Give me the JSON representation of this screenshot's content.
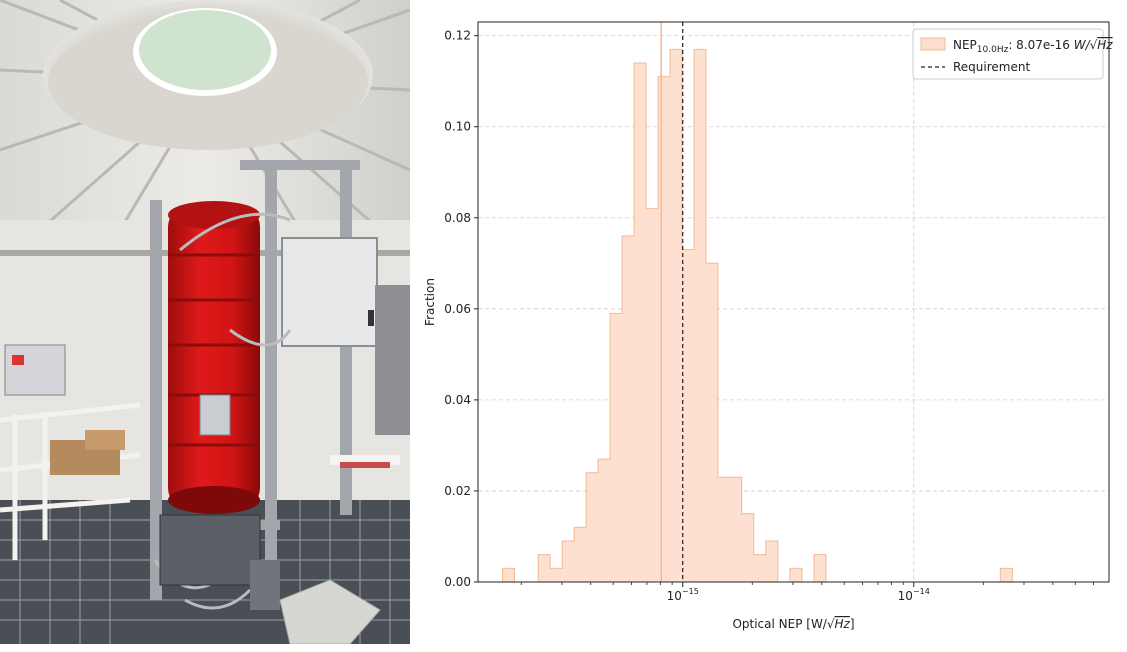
{
  "photo": {
    "description_icon": "telescope-cryostat-photo"
  },
  "chart_data": {
    "type": "histogram",
    "xscale": "log",
    "xlabel_prefix": "Optical NEP [W/",
    "xlabel_sqrt": "Hz",
    "xlabel_suffix": "]",
    "ylabel": "Fraction",
    "xlim": [
      1.3e-16,
      7e-14
    ],
    "ylim": [
      0,
      0.123
    ],
    "yticks": [
      0.0,
      0.02,
      0.04,
      0.06,
      0.08,
      0.1,
      0.12
    ],
    "ytick_labels": [
      "0.00",
      "0.02",
      "0.04",
      "0.06",
      "0.08",
      "0.10",
      "0.12"
    ],
    "xticks": [
      {
        "value": 1e-15,
        "base": "10",
        "exp": "−15"
      },
      {
        "value": 1e-14,
        "base": "10",
        "exp": "−14"
      }
    ],
    "grid": true,
    "legend_position": "top-right",
    "series": {
      "name_main": "NEP",
      "name_sub": "10.0Hz",
      "name_value": ": 8.07e-16 ",
      "name_unit_prefix": "W/",
      "name_unit_sqrt": "Hz",
      "color": "#f4b995",
      "fill_color": "#fde0d0",
      "median": 8.07e-16,
      "bins": [
        {
          "x0": 1.66e-16,
          "x1": 1.87e-16,
          "value": 0.003
        },
        {
          "x0": 2.37e-16,
          "x1": 2.67e-16,
          "value": 0.006
        },
        {
          "x0": 2.67e-16,
          "x1": 3.01e-16,
          "value": 0.003
        },
        {
          "x0": 3.01e-16,
          "x1": 3.39e-16,
          "value": 0.009
        },
        {
          "x0": 3.39e-16,
          "x1": 3.82e-16,
          "value": 0.012
        },
        {
          "x0": 3.82e-16,
          "x1": 4.3e-16,
          "value": 0.024
        },
        {
          "x0": 4.3e-16,
          "x1": 4.85e-16,
          "value": 0.027
        },
        {
          "x0": 4.85e-16,
          "x1": 5.46e-16,
          "value": 0.059
        },
        {
          "x0": 5.46e-16,
          "x1": 6.16e-16,
          "value": 0.076
        },
        {
          "x0": 6.16e-16,
          "x1": 6.94e-16,
          "value": 0.114
        },
        {
          "x0": 6.94e-16,
          "x1": 7.82e-16,
          "value": 0.082
        },
        {
          "x0": 7.82e-16,
          "x1": 8.81e-16,
          "value": 0.111
        },
        {
          "x0": 8.81e-16,
          "x1": 9.93e-16,
          "value": 0.117
        },
        {
          "x0": 9.93e-16,
          "x1": 1.12e-15,
          "value": 0.073
        },
        {
          "x0": 1.12e-15,
          "x1": 1.26e-15,
          "value": 0.117
        },
        {
          "x0": 1.26e-15,
          "x1": 1.42e-15,
          "value": 0.07
        },
        {
          "x0": 1.42e-15,
          "x1": 1.6e-15,
          "value": 0.023
        },
        {
          "x0": 1.6e-15,
          "x1": 1.8e-15,
          "value": 0.023
        },
        {
          "x0": 1.8e-15,
          "x1": 2.03e-15,
          "value": 0.015
        },
        {
          "x0": 2.03e-15,
          "x1": 2.29e-15,
          "value": 0.006
        },
        {
          "x0": 2.29e-15,
          "x1": 2.58e-15,
          "value": 0.009
        },
        {
          "x0": 2.91e-15,
          "x1": 3.28e-15,
          "value": 0.003
        },
        {
          "x0": 3.7e-15,
          "x1": 4.17e-15,
          "value": 0.006
        },
        {
          "x0": 2.37e-14,
          "x1": 2.67e-14,
          "value": 0.003
        }
      ]
    },
    "requirement": {
      "name": "Requirement",
      "value": 1e-15,
      "color": "#222222"
    }
  }
}
